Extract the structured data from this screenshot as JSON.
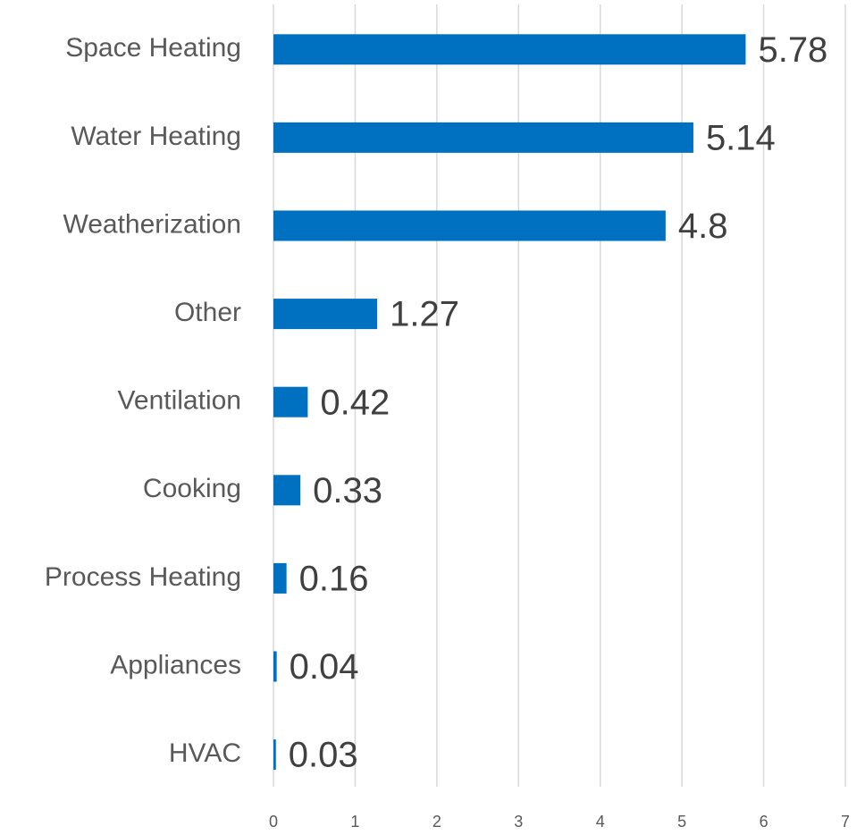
{
  "chart_data": {
    "type": "bar",
    "orientation": "horizontal",
    "categories": [
      "Space Heating",
      "Water Heating",
      "Weatherization",
      "Other",
      "Ventilation",
      "Cooking",
      "Process Heating",
      "Appliances",
      "HVAC"
    ],
    "values": [
      5.78,
      5.14,
      4.8,
      1.27,
      0.42,
      0.33,
      0.16,
      0.04,
      0.03
    ],
    "color": "#0070c0",
    "xlim": [
      0,
      7
    ],
    "xticks": [
      0,
      1,
      2,
      3,
      4,
      5,
      6,
      7
    ],
    "grid": true
  }
}
